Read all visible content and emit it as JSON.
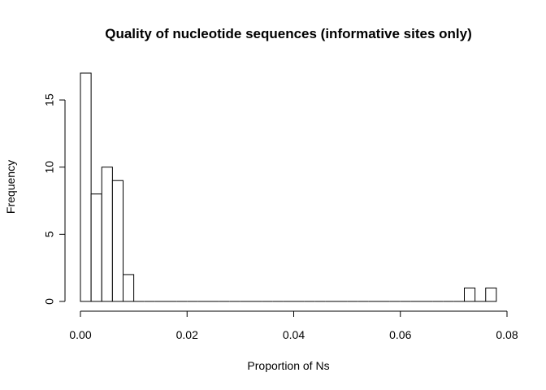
{
  "chart_data": {
    "type": "bar",
    "title": "Quality of nucleotide sequences (informative sites only)",
    "xlabel": "Proportion of Ns",
    "ylabel": "Frequency",
    "bin_width": 0.002,
    "bins_start": [
      0.0,
      0.002,
      0.004,
      0.006,
      0.008,
      0.01,
      0.012,
      0.014,
      0.016,
      0.018,
      0.02,
      0.022,
      0.024,
      0.026,
      0.028,
      0.03,
      0.032,
      0.034,
      0.036,
      0.038,
      0.04,
      0.042,
      0.044,
      0.046,
      0.048,
      0.05,
      0.052,
      0.054,
      0.056,
      0.058,
      0.06,
      0.062,
      0.064,
      0.066,
      0.068,
      0.07,
      0.072,
      0.074,
      0.076
    ],
    "values": [
      17,
      8,
      10,
      9,
      2,
      0,
      0,
      0,
      0,
      0,
      0,
      0,
      0,
      0,
      0,
      0,
      0,
      0,
      0,
      0,
      0,
      0,
      0,
      0,
      0,
      0,
      0,
      0,
      0,
      0,
      0,
      0,
      0,
      0,
      0,
      0,
      1,
      0,
      1
    ],
    "xlim": [
      0.0,
      0.08
    ],
    "ylim": [
      0,
      17
    ],
    "xticks": [
      "0.00",
      "0.02",
      "0.04",
      "0.06",
      "0.08"
    ],
    "yticks": [
      "0",
      "5",
      "10",
      "15"
    ],
    "grid": false,
    "legend": "none"
  }
}
